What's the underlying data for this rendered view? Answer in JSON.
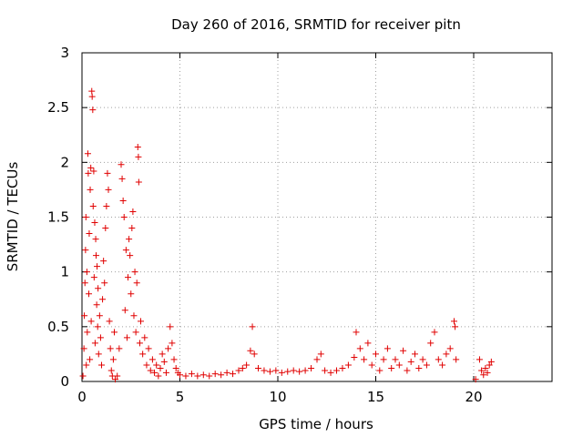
{
  "chart_data": {
    "type": "scatter",
    "title": "Day 260 of 2016, SRMTID for receiver pitn",
    "xlabel": "GPS time / hours",
    "ylabel": "SRMTID / TECUs",
    "xlim": [
      0,
      24
    ],
    "ylim": [
      0,
      3
    ],
    "x_ticks": [
      0,
      5,
      10,
      15,
      20
    ],
    "x_tick_labels": [
      "0",
      "5",
      "10",
      "15",
      "20"
    ],
    "y_ticks": [
      0,
      0.5,
      1,
      1.5,
      2,
      2.5,
      3
    ],
    "y_tick_labels": [
      "0",
      "0.5",
      "1",
      "1.5",
      "2",
      "2.5",
      "3"
    ],
    "grid": true,
    "marker": "+",
    "color": "#e00000",
    "series": [
      {
        "values": [
          [
            0.05,
            0.05
          ],
          [
            0.1,
            0.3
          ],
          [
            0.12,
            0.6
          ],
          [
            0.15,
            0.9
          ],
          [
            0.18,
            1.2
          ],
          [
            0.2,
            1.5
          ],
          [
            0.22,
            0.15
          ],
          [
            0.25,
            1.0
          ],
          [
            0.27,
            0.45
          ],
          [
            0.3,
            2.08
          ],
          [
            0.32,
            1.9
          ],
          [
            0.35,
            0.8
          ],
          [
            0.37,
            1.35
          ],
          [
            0.4,
            0.2
          ],
          [
            0.42,
            1.75
          ],
          [
            0.45,
            1.95
          ],
          [
            0.47,
            0.55
          ],
          [
            0.5,
            2.65
          ],
          [
            0.52,
            2.6
          ],
          [
            0.55,
            2.48
          ],
          [
            0.57,
            1.6
          ],
          [
            0.6,
            1.92
          ],
          [
            0.62,
            0.95
          ],
          [
            0.65,
            1.45
          ],
          [
            0.67,
            0.35
          ],
          [
            0.7,
            1.3
          ],
          [
            0.72,
            1.15
          ],
          [
            0.75,
            0.7
          ],
          [
            0.77,
            1.05
          ],
          [
            0.8,
            0.5
          ],
          [
            0.82,
            0.85
          ],
          [
            0.85,
            0.25
          ],
          [
            0.9,
            0.6
          ],
          [
            0.95,
            0.4
          ],
          [
            1.0,
            0.15
          ],
          [
            1.05,
            0.75
          ],
          [
            1.1,
            1.1
          ],
          [
            1.15,
            0.9
          ],
          [
            1.2,
            1.4
          ],
          [
            1.25,
            1.6
          ],
          [
            1.3,
            1.9
          ],
          [
            1.35,
            1.75
          ],
          [
            1.4,
            0.55
          ],
          [
            1.45,
            0.3
          ],
          [
            1.5,
            0.1
          ],
          [
            1.55,
            0.05
          ],
          [
            1.6,
            0.2
          ],
          [
            1.65,
            0.45
          ],
          [
            1.7,
            0.02
          ],
          [
            1.8,
            0.05
          ],
          [
            1.9,
            0.3
          ],
          [
            2.0,
            1.98
          ],
          [
            2.05,
            1.85
          ],
          [
            2.1,
            1.65
          ],
          [
            2.15,
            1.5
          ],
          [
            2.2,
            0.65
          ],
          [
            2.25,
            1.2
          ],
          [
            2.3,
            0.4
          ],
          [
            2.35,
            0.95
          ],
          [
            2.4,
            1.3
          ],
          [
            2.45,
            1.15
          ],
          [
            2.5,
            0.8
          ],
          [
            2.55,
            1.4
          ],
          [
            2.6,
            1.55
          ],
          [
            2.65,
            0.6
          ],
          [
            2.7,
            1.0
          ],
          [
            2.75,
            0.45
          ],
          [
            2.8,
            0.9
          ],
          [
            2.85,
            2.14
          ],
          [
            2.88,
            2.05
          ],
          [
            2.9,
            1.82
          ],
          [
            2.95,
            0.35
          ],
          [
            3.0,
            0.55
          ],
          [
            3.1,
            0.25
          ],
          [
            3.2,
            0.4
          ],
          [
            3.3,
            0.15
          ],
          [
            3.4,
            0.3
          ],
          [
            3.5,
            0.1
          ],
          [
            3.6,
            0.2
          ],
          [
            3.7,
            0.08
          ],
          [
            3.8,
            0.15
          ],
          [
            3.9,
            0.05
          ],
          [
            4.0,
            0.12
          ],
          [
            4.1,
            0.25
          ],
          [
            4.2,
            0.18
          ],
          [
            4.3,
            0.08
          ],
          [
            4.4,
            0.3
          ],
          [
            4.5,
            0.5
          ],
          [
            4.6,
            0.35
          ],
          [
            4.7,
            0.2
          ],
          [
            4.8,
            0.12
          ],
          [
            4.9,
            0.08
          ],
          [
            5.0,
            0.06
          ],
          [
            5.3,
            0.05
          ],
          [
            5.6,
            0.07
          ],
          [
            5.9,
            0.05
          ],
          [
            6.2,
            0.06
          ],
          [
            6.5,
            0.05
          ],
          [
            6.8,
            0.07
          ],
          [
            7.1,
            0.06
          ],
          [
            7.4,
            0.08
          ],
          [
            7.7,
            0.07
          ],
          [
            8.0,
            0.1
          ],
          [
            8.2,
            0.12
          ],
          [
            8.4,
            0.15
          ],
          [
            8.6,
            0.28
          ],
          [
            8.7,
            0.5
          ],
          [
            8.8,
            0.25
          ],
          [
            9.0,
            0.12
          ],
          [
            9.3,
            0.1
          ],
          [
            9.6,
            0.09
          ],
          [
            9.9,
            0.1
          ],
          [
            10.2,
            0.08
          ],
          [
            10.5,
            0.09
          ],
          [
            10.8,
            0.1
          ],
          [
            11.1,
            0.09
          ],
          [
            11.4,
            0.1
          ],
          [
            11.7,
            0.12
          ],
          [
            12.0,
            0.2
          ],
          [
            12.2,
            0.25
          ],
          [
            12.4,
            0.1
          ],
          [
            12.7,
            0.08
          ],
          [
            13.0,
            0.1
          ],
          [
            13.3,
            0.12
          ],
          [
            13.6,
            0.15
          ],
          [
            13.9,
            0.22
          ],
          [
            14.0,
            0.45
          ],
          [
            14.2,
            0.3
          ],
          [
            14.4,
            0.2
          ],
          [
            14.6,
            0.35
          ],
          [
            14.8,
            0.15
          ],
          [
            15.0,
            0.25
          ],
          [
            15.2,
            0.1
          ],
          [
            15.4,
            0.2
          ],
          [
            15.6,
            0.3
          ],
          [
            15.8,
            0.12
          ],
          [
            16.0,
            0.2
          ],
          [
            16.2,
            0.15
          ],
          [
            16.4,
            0.28
          ],
          [
            16.6,
            0.1
          ],
          [
            16.8,
            0.18
          ],
          [
            17.0,
            0.25
          ],
          [
            17.2,
            0.12
          ],
          [
            17.4,
            0.2
          ],
          [
            17.6,
            0.15
          ],
          [
            17.8,
            0.35
          ],
          [
            18.0,
            0.45
          ],
          [
            18.2,
            0.2
          ],
          [
            18.4,
            0.15
          ],
          [
            18.6,
            0.25
          ],
          [
            18.8,
            0.3
          ],
          [
            19.0,
            0.55
          ],
          [
            19.05,
            0.5
          ],
          [
            19.1,
            0.2
          ],
          [
            20.1,
            0.02
          ],
          [
            20.3,
            0.2
          ],
          [
            20.4,
            0.1
          ],
          [
            20.5,
            0.06
          ],
          [
            20.6,
            0.12
          ],
          [
            20.7,
            0.08
          ],
          [
            20.8,
            0.15
          ],
          [
            20.9,
            0.18
          ]
        ]
      }
    ]
  }
}
